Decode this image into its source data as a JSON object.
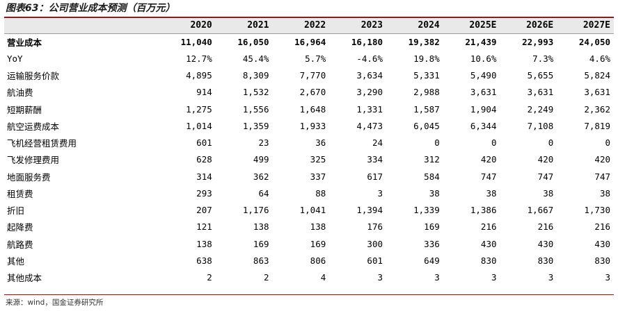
{
  "title": "图表63：公司营业成本预测（百万元）",
  "columns": [
    "",
    "2020",
    "2021",
    "2022",
    "2023",
    "2024",
    "2025E",
    "2026E",
    "2027E"
  ],
  "rows": [
    {
      "label": "营业成本",
      "values": [
        "11,040",
        "16,050",
        "16,964",
        "16,180",
        "19,382",
        "21,439",
        "22,993",
        "24,050"
      ],
      "bold": true
    },
    {
      "label": "YoY",
      "values": [
        "12.7%",
        "45.4%",
        "5.7%",
        "-4.6%",
        "19.8%",
        "10.6%",
        "7.3%",
        "4.6%"
      ]
    },
    {
      "label": "运输服务价款",
      "values": [
        "4,895",
        "8,309",
        "7,770",
        "3,634",
        "5,331",
        "5,490",
        "5,655",
        "5,824"
      ]
    },
    {
      "label": "航油费",
      "values": [
        "914",
        "1,532",
        "2,670",
        "3,290",
        "2,988",
        "3,631",
        "3,631",
        "3,631"
      ]
    },
    {
      "label": "短期薪酬",
      "values": [
        "1,275",
        "1,556",
        "1,648",
        "1,331",
        "1,587",
        "1,904",
        "2,249",
        "2,362"
      ]
    },
    {
      "label": "航空运费成本",
      "values": [
        "1,014",
        "1,359",
        "1,933",
        "4,473",
        "6,045",
        "6,344",
        "7,108",
        "7,819"
      ]
    },
    {
      "label": "飞机经营租赁费用",
      "values": [
        "601",
        "23",
        "36",
        "24",
        "0",
        "0",
        "0",
        "0"
      ]
    },
    {
      "label": "飞发修理费用",
      "values": [
        "628",
        "499",
        "325",
        "334",
        "312",
        "420",
        "420",
        "420"
      ]
    },
    {
      "label": "地面服务费",
      "values": [
        "314",
        "362",
        "337",
        "617",
        "584",
        "747",
        "747",
        "747"
      ]
    },
    {
      "label": "租赁费",
      "values": [
        "293",
        "64",
        "88",
        "3",
        "38",
        "38",
        "38",
        "38"
      ]
    },
    {
      "label": "折旧",
      "values": [
        "207",
        "1,176",
        "1,041",
        "1,394",
        "1,339",
        "1,386",
        "1,667",
        "1,730"
      ]
    },
    {
      "label": "起降费",
      "values": [
        "121",
        "138",
        "138",
        "176",
        "169",
        "216",
        "216",
        "216"
      ]
    },
    {
      "label": "航路费",
      "values": [
        "138",
        "169",
        "169",
        "300",
        "336",
        "430",
        "430",
        "430"
      ]
    },
    {
      "label": "其他",
      "values": [
        "638",
        "863",
        "806",
        "601",
        "649",
        "830",
        "830",
        "830"
      ]
    },
    {
      "label": "其他成本",
      "values": [
        "2",
        "2",
        "4",
        "3",
        "3",
        "3",
        "3",
        "3"
      ]
    }
  ],
  "source": "来源：wind，国金证券研究所",
  "colors": {
    "accent_rule": "#8b1a1a",
    "header_bg": "#e9e9e9"
  }
}
